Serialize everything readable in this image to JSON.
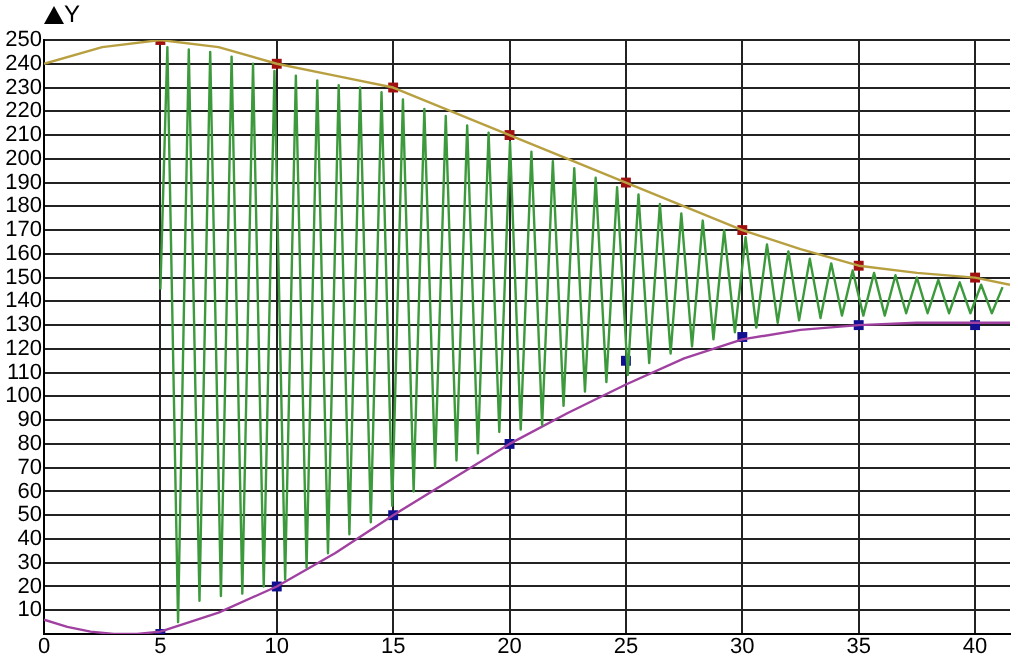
{
  "chart_data": {
    "type": "line",
    "ylabel": "Y",
    "xlim": [
      0,
      41.5
    ],
    "ylim": [
      0,
      250
    ],
    "xticks": [
      0,
      5,
      10,
      15,
      20,
      25,
      30,
      35,
      40
    ],
    "yticks": [
      {
        "value": 0,
        "label": null
      },
      10,
      20,
      30,
      40,
      50,
      60,
      70,
      80,
      90,
      100,
      110,
      120,
      130,
      140,
      150,
      160,
      170,
      180,
      190,
      200,
      210,
      220,
      230,
      240,
      250
    ],
    "grid": true,
    "legend": false,
    "series": [
      {
        "type": "line",
        "color": "#3c9a3c",
        "marker": "none",
        "x": [
          5,
          5.3,
          5.76,
          6.22,
          6.68,
          7.14,
          7.6,
          8.06,
          8.52,
          8.98,
          9.44,
          9.9,
          10.36,
          10.82,
          11.28,
          11.74,
          12.2,
          12.66,
          13.12,
          13.58,
          14.04,
          14.5,
          14.96,
          15.42,
          15.88,
          16.34,
          16.8,
          17.26,
          17.72,
          18.18,
          18.64,
          19.1,
          19.56,
          20.02,
          20.48,
          20.94,
          21.4,
          21.86,
          22.32,
          22.78,
          23.24,
          23.7,
          24.16,
          24.62,
          25.08,
          25.54,
          26.0,
          26.46,
          26.92,
          27.38,
          27.84,
          28.3,
          28.76,
          29.22,
          29.68,
          30.14,
          30.6,
          31.06,
          31.52,
          31.98,
          32.44,
          32.9,
          33.36,
          33.82,
          34.28,
          34.74,
          35.2,
          35.66,
          36.12,
          36.58,
          37.04,
          37.5,
          37.96,
          38.42,
          38.88,
          39.34,
          39.8,
          40.26,
          40.72,
          41.18
        ],
        "values": [
          145,
          247,
          5,
          246,
          14,
          245,
          16,
          243,
          17,
          240,
          20,
          237,
          23,
          235,
          28,
          233,
          34,
          231,
          42,
          230,
          47,
          228,
          54,
          225,
          60,
          221,
          70,
          218,
          73,
          214,
          76,
          211,
          85,
          207,
          86,
          203,
          88,
          199,
          96,
          196,
          102,
          192,
          106,
          188,
          109,
          185,
          114,
          181,
          118,
          177,
          121,
          174,
          124,
          170,
          127,
          167,
          129,
          164,
          131,
          161,
          132,
          158,
          133,
          156,
          134,
          153,
          134,
          152,
          134,
          151,
          135,
          150,
          135,
          149,
          135,
          148,
          135,
          147,
          135,
          146
        ]
      },
      {
        "type": "line",
        "color": "#b8a040",
        "marker": "none",
        "x": [
          0,
          2.5,
          5,
          7.5,
          10,
          12.5,
          15,
          17.5,
          20,
          22.5,
          25,
          27.5,
          30,
          32.5,
          35,
          37.5,
          40,
          41.5
        ],
        "values": [
          240,
          247,
          250,
          247,
          240,
          235,
          230,
          220,
          210,
          200,
          190,
          180,
          170,
          162,
          155,
          152,
          150,
          147
        ]
      },
      {
        "type": "line",
        "color": "#a040a0",
        "marker": "none",
        "x": [
          0,
          1,
          2,
          3,
          4,
          5,
          7.5,
          10,
          12.5,
          15,
          17.5,
          20,
          22.5,
          25,
          27.5,
          30,
          32.5,
          35,
          37.5,
          40,
          41.5
        ],
        "values": [
          6,
          3,
          1,
          0,
          0,
          1,
          9,
          20,
          34,
          50,
          65,
          80,
          93,
          105,
          116,
          124,
          128,
          130,
          131,
          131,
          131
        ]
      },
      {
        "type": "scatter",
        "color": "#a01010",
        "marker": "square",
        "x": [
          5,
          10,
          15,
          20,
          25,
          30,
          35,
          40
        ],
        "values": [
          250,
          240,
          230,
          210,
          190,
          170,
          155,
          150
        ]
      },
      {
        "type": "scatter",
        "color": "#101090",
        "marker": "square",
        "x": [
          5,
          10,
          15,
          20,
          25,
          30,
          35,
          40
        ],
        "values": [
          0,
          20,
          50,
          80,
          115,
          125,
          130,
          130
        ]
      }
    ]
  }
}
